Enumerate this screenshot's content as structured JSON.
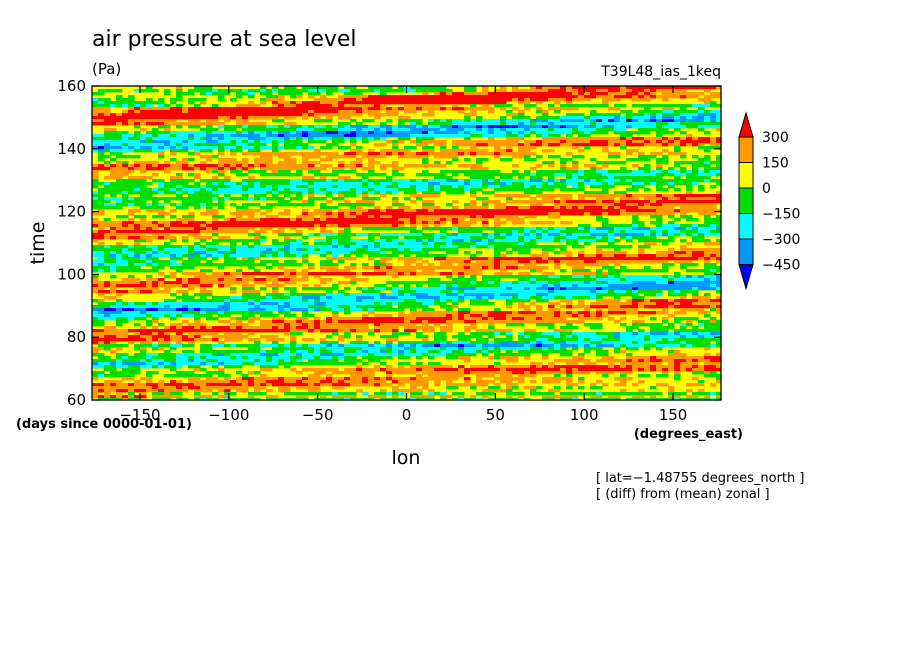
{
  "chart_data": {
    "type": "heatmap",
    "title": "air pressure at sea level",
    "units": "(Pa)",
    "run_name": "T39L48_ias_1keq",
    "xlabel": "lon",
    "xunits": "(degrees_east)",
    "ylabel": "time",
    "yunits": "(days since 0000-01-01)",
    "xlim": [
      -177,
      177
    ],
    "ylim": [
      60,
      160
    ],
    "x_ticks": [
      -150,
      -100,
      -50,
      0,
      50,
      100,
      150
    ],
    "x_tick_labels": [
      "−150",
      "−100",
      "−50",
      "0",
      "50",
      "100",
      "150"
    ],
    "y_ticks": [
      60,
      80,
      100,
      120,
      140,
      160
    ],
    "y_tick_labels": [
      "60",
      "80",
      "100",
      "120",
      "140",
      "160"
    ],
    "notes": [
      "[ lat=−1.48755 degrees_north ]",
      "[ (diff) from (mean) zonal ]"
    ],
    "colorbar": {
      "levels": [
        300,
        150,
        0,
        -150,
        -300,
        -450
      ],
      "level_labels": [
        "300",
        "150",
        "0",
        "−150",
        "−300",
        "−450"
      ],
      "colors": [
        "#ff0000",
        "#ff9900",
        "#ffff00",
        "#00dd00",
        "#00ffff",
        "#0099ff",
        "#0000ff"
      ]
    },
    "bands": [
      {
        "t_at_lon_minus180": 149,
        "slope_days_per_deg": 0.034,
        "value": 350
      },
      {
        "t_at_lon_minus180": 141,
        "slope_days_per_deg": 0.026,
        "value": -380
      },
      {
        "t_at_lon_minus180": 133,
        "slope_days_per_deg": 0.03,
        "value": 180
      },
      {
        "t_at_lon_minus180": 124,
        "slope_days_per_deg": 0.025,
        "value": -200
      },
      {
        "t_at_lon_minus180": 113,
        "slope_days_per_deg": 0.03,
        "value": 320
      },
      {
        "t_at_lon_minus180": 105,
        "slope_days_per_deg": 0.028,
        "value": -250
      },
      {
        "t_at_lon_minus180": 96,
        "slope_days_per_deg": 0.03,
        "value": 300
      },
      {
        "t_at_lon_minus180": 88,
        "slope_days_per_deg": 0.026,
        "value": -380
      },
      {
        "t_at_lon_minus180": 80,
        "slope_days_per_deg": 0.03,
        "value": 280
      },
      {
        "t_at_lon_minus180": 71,
        "slope_days_per_deg": 0.028,
        "value": -300
      },
      {
        "t_at_lon_minus180": 63,
        "slope_days_per_deg": 0.026,
        "value": 220
      },
      {
        "t_at_lon_minus180": 155,
        "slope_days_per_deg": 0.026,
        "value": -150
      }
    ]
  }
}
